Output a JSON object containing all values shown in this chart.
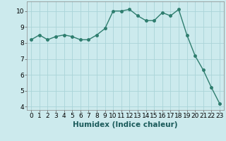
{
  "x": [
    0,
    1,
    2,
    3,
    4,
    5,
    6,
    7,
    8,
    9,
    10,
    11,
    12,
    13,
    14,
    15,
    16,
    17,
    18,
    19,
    20,
    21,
    22,
    23
  ],
  "y": [
    8.2,
    8.5,
    8.2,
    8.4,
    8.5,
    8.4,
    8.2,
    8.2,
    8.5,
    8.9,
    10.0,
    10.0,
    10.1,
    9.7,
    9.4,
    9.4,
    9.9,
    9.7,
    10.1,
    8.5,
    7.2,
    6.3,
    5.2,
    4.2
  ],
  "line_color": "#2e7d6e",
  "marker": "o",
  "markersize": 2.5,
  "linewidth": 1.0,
  "bg_color": "#cceaed",
  "grid_color": "#aad4d8",
  "xlabel": "Humidex (Indice chaleur)",
  "xlabel_fontsize": 7.5,
  "xlabel_fontweight": "bold",
  "xlim": [
    -0.5,
    23.5
  ],
  "ylim": [
    3.8,
    10.6
  ],
  "yticks": [
    4,
    5,
    6,
    7,
    8,
    9,
    10
  ],
  "xticks": [
    0,
    1,
    2,
    3,
    4,
    5,
    6,
    7,
    8,
    9,
    10,
    11,
    12,
    13,
    14,
    15,
    16,
    17,
    18,
    19,
    20,
    21,
    22,
    23
  ],
  "tick_fontsize": 6.5
}
